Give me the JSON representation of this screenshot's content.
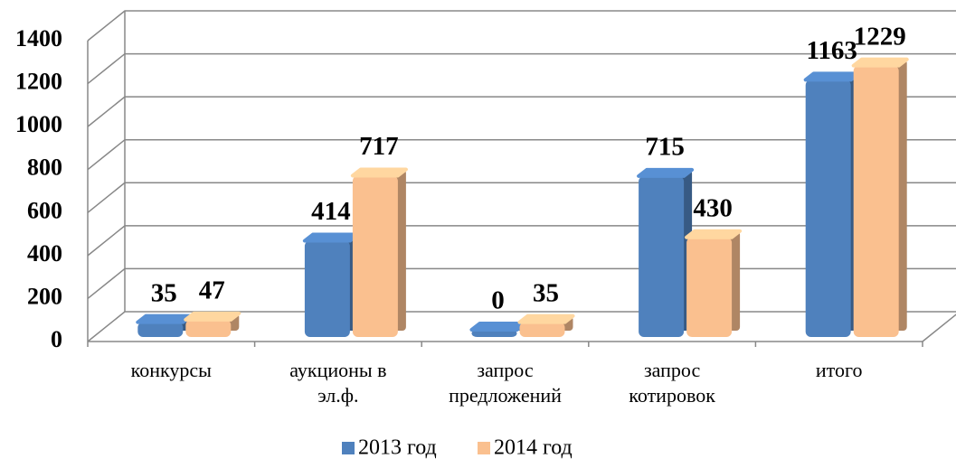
{
  "chart_data": {
    "type": "bar3d",
    "categories": [
      "конкурсы",
      "аукционы в эл.ф.",
      "запрос предложений",
      "запрос котировок",
      "итого"
    ],
    "series": [
      {
        "name": "2013 год",
        "color": "#4f81bd",
        "values": [
          35,
          414,
          0,
          715,
          1163
        ]
      },
      {
        "name": "2014 год",
        "color": "#fac08f",
        "values": [
          47,
          717,
          35,
          430,
          1229
        ]
      }
    ],
    "ylim": [
      0,
      1400
    ],
    "yticks": [
      0,
      200,
      400,
      600,
      800,
      1000,
      1200,
      1400
    ],
    "grid": true,
    "legend": "bottom"
  }
}
